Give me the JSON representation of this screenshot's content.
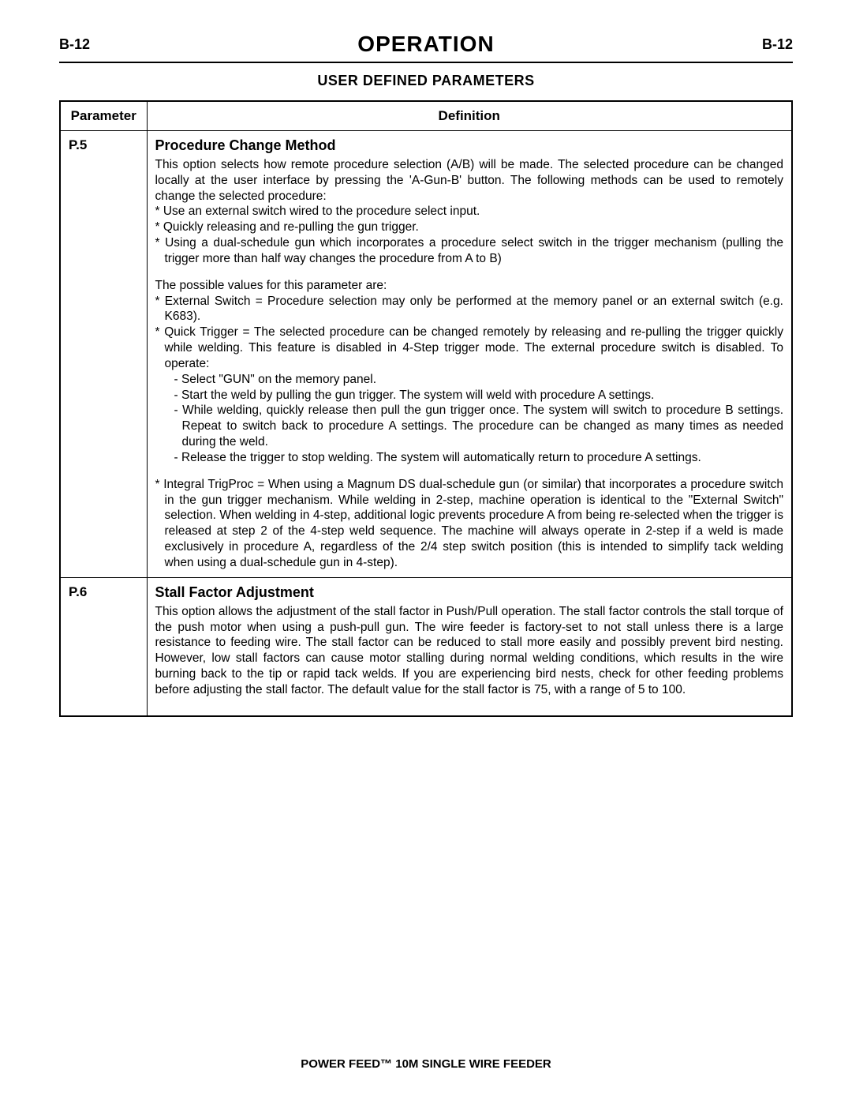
{
  "header": {
    "left": "B-12",
    "title": "OPERATION",
    "right": "B-12",
    "subtitle": "USER DEFINED PARAMETERS"
  },
  "table": {
    "col_param": "Parameter",
    "col_def": "Definition",
    "rows": [
      {
        "id": "P.5",
        "title": "Procedure Change Method",
        "intro": "This option selects how remote procedure selection (A/B) will be made. The selected procedure can be changed locally at the user interface by pressing the 'A-Gun-B' button. The following methods can be used to remotely change the selected procedure:",
        "intro_b1": "* Use an external switch wired to the procedure select input.",
        "intro_b2": "* Quickly releasing and re-pulling the gun trigger.",
        "intro_b3": "* Using a dual-schedule gun which incorporates a procedure select switch in the trigger mechanism   (pulling the trigger more than half way changes the procedure from A to B)",
        "vals_head": "The possible values for this parameter are:",
        "val1": "* External Switch = Procedure selection may only be performed at the memory panel or an external switch (e.g. K683).",
        "val2": "* Quick Trigger = The selected procedure can be changed remotely by releasing and re-pulling the trigger quickly while welding. This feature is disabled in 4-Step trigger mode. The external procedure switch is disabled. To operate:",
        "val2_d1": "- Select \"GUN\" on the memory panel.",
        "val2_d2": "- Start the weld by pulling the gun trigger. The system will weld with procedure A settings.",
        "val2_d3": "- While welding, quickly release then pull the gun trigger once. The system will switch to procedure B settings. Repeat to switch back to procedure A settings. The procedure can be changed as many times as needed during the weld.",
        "val2_d4": "- Release the trigger to stop welding. The system will automatically return to procedure A settings.",
        "val3": "* Integral TrigProc = When using a Magnum DS dual-schedule gun (or similar) that incorporates a procedure switch in the gun trigger mechanism.  While welding in 2-step, machine operation is identical to the \"External Switch\" selection. When welding in 4-step, additional logic prevents procedure A from being re-selected when the trigger is released at step 2 of the 4-step weld sequence. The machine will always operate in 2-step if a weld is made exclusively in procedure A, regardless of the 2/4 step switch position (this is intended to simplify tack welding when using a dual-schedule gun in 4-step)."
      },
      {
        "id": "P.6",
        "title": "Stall Factor Adjustment",
        "body": "This option allows the adjustment of the stall factor in Push/Pull operation. The stall factor controls the stall torque of the push motor when using a push-pull gun. The wire feeder is factory-set to not stall unless there is a large resistance to feeding wire. The stall factor can be reduced to stall more easily and possibly prevent bird nesting. However, low stall factors can cause motor stalling during normal welding conditions, which results in the wire burning back to the tip or rapid tack welds.  If you are experiencing bird nests, check for other feeding problems before adjusting the stall factor. The default value for the stall factor is 75, with a range of 5 to 100."
      }
    ]
  },
  "footer": "POWER FEED™ 10M SINGLE WIRE FEEDER"
}
